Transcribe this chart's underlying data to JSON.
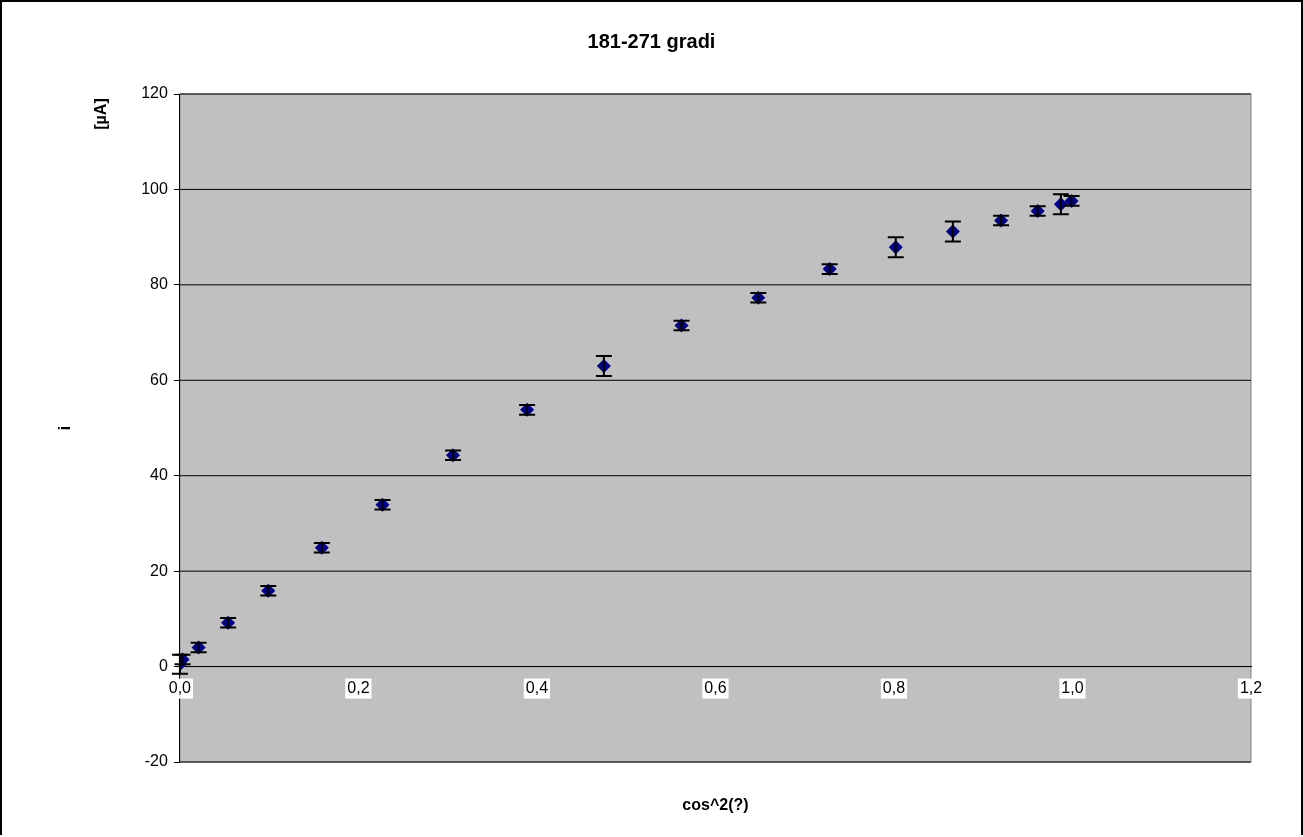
{
  "chart_data": {
    "type": "scatter",
    "title": "181-271 gradi",
    "xlabel": "cos^2(?)",
    "ylabel": "i",
    "annotations": [
      "[µA]"
    ],
    "x": [
      0,
      0.003,
      0.021,
      0.054,
      0.099,
      0.159,
      0.227,
      0.306,
      0.389,
      0.475,
      0.562,
      0.648,
      0.728,
      0.802,
      0.866,
      0.92,
      0.961,
      0.987,
      0.999
    ],
    "series": [
      {
        "color": "#000080",
        "values": [
          0.5,
          1.5,
          4,
          9.2,
          15.9,
          24.9,
          33.9,
          44.3,
          53.8,
          63,
          71.5,
          77.3,
          83.3,
          87.9,
          91.2,
          93.5,
          95.5,
          96.9,
          97.6
        ],
        "errors": [
          2,
          1,
          1,
          1,
          1,
          1,
          1,
          1,
          1,
          2.1,
          1,
          1,
          1,
          2.1,
          2.1,
          1,
          1,
          2.1,
          1
        ]
      }
    ],
    "xlim": [
      0,
      1.2
    ],
    "xticks": [
      {
        "value": 0,
        "label": "0,0"
      },
      {
        "value": 0.2,
        "label": "0,2"
      },
      {
        "value": 0.4,
        "label": "0,4"
      },
      {
        "value": 0.6,
        "label": "0,6"
      },
      {
        "value": 0.8,
        "label": "0,8"
      },
      {
        "value": 1,
        "label": "1,0"
      },
      {
        "value": 1.2,
        "label": "1,2"
      }
    ],
    "ylim": [
      -20,
      120
    ],
    "yticks": [
      -20,
      0,
      20,
      40,
      60,
      80,
      100,
      120
    ],
    "grid": "y",
    "marker": "diamond",
    "legend": false
  }
}
